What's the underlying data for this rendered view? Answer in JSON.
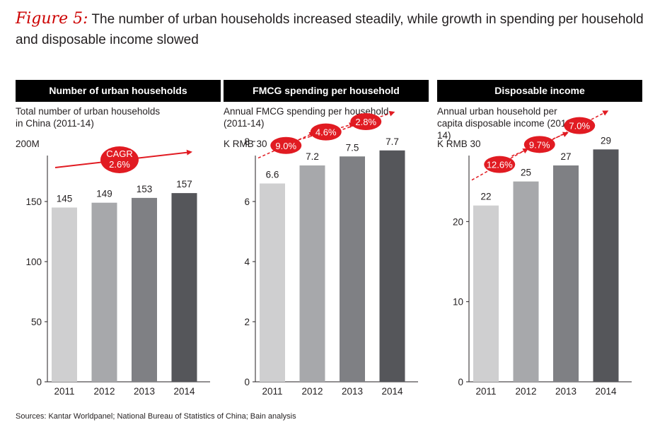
{
  "figure": {
    "label": "Figure 5:",
    "title": "The number of urban households increased steadily, while growth in spending per household and disposable income slowed"
  },
  "source": "Sources: Kantar Worldpanel; National Bureau of Statistics of China; Bain analysis",
  "colors": {
    "bars": [
      "#cfcfd0",
      "#a7a8ab",
      "#7f8084",
      "#55565a"
    ],
    "accent": "#e11b22",
    "header_bg": "#000000"
  },
  "chart_data": [
    {
      "type": "bar",
      "title": "Number of urban households",
      "subtitle": "Total number of urban households in China (2011-14)",
      "ylabel": "200M",
      "categories": [
        "2011",
        "2012",
        "2013",
        "2014"
      ],
      "values": [
        145,
        149,
        153,
        157
      ],
      "value_labels": [
        "145",
        "149",
        "153",
        "157"
      ],
      "ylim": [
        0,
        200
      ],
      "yticks": [
        0,
        50,
        100,
        150
      ],
      "ytick_labels": [
        "0",
        "50",
        "100",
        "150"
      ],
      "cagr_label": "CAGR",
      "cagr": [
        "2.6%"
      ]
    },
    {
      "type": "bar",
      "title": "FMCG spending per household",
      "subtitle": "Annual FMCG spending per household (2011-14)",
      "ylabel": "K RMB 30",
      "categories": [
        "2011",
        "2012",
        "2013",
        "2014"
      ],
      "values": [
        6.6,
        7.2,
        7.5,
        7.7
      ],
      "value_labels": [
        "6.6",
        "7.2",
        "7.5",
        "7.7"
      ],
      "ylim": [
        0,
        8
      ],
      "yticks": [
        0,
        2,
        4,
        6,
        8
      ],
      "ytick_labels": [
        "0",
        "2",
        "4",
        "6",
        "8"
      ],
      "growth": [
        "9.0%",
        "4.6%",
        "2.8%"
      ]
    },
    {
      "type": "bar",
      "title": "Disposable income",
      "subtitle": "Annual urban household per capita disposable income (2011-14)",
      "ylabel": "K RMB 30",
      "categories": [
        "2011",
        "2012",
        "2013",
        "2014"
      ],
      "values": [
        22,
        25,
        27,
        29
      ],
      "value_labels": [
        "22",
        "25",
        "27",
        "29"
      ],
      "ylim": [
        0,
        30
      ],
      "yticks": [
        0,
        10,
        20
      ],
      "ytick_labels": [
        "0",
        "10",
        "20"
      ],
      "growth": [
        "12.6%",
        "9.7%",
        "7.0%"
      ]
    }
  ]
}
